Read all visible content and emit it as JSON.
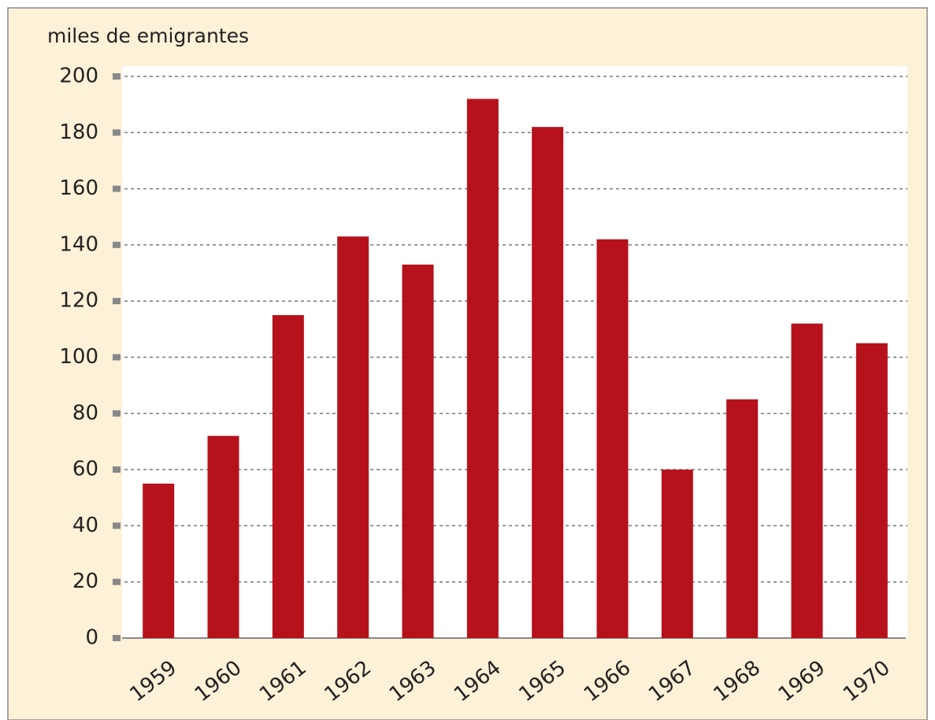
{
  "chart_data": {
    "type": "bar",
    "title": "miles de emigrantes",
    "categories": [
      "1959",
      "1960",
      "1961",
      "1962",
      "1963",
      "1964",
      "1965",
      "1966",
      "1967",
      "1968",
      "1969",
      "1970"
    ],
    "values": [
      55,
      72,
      115,
      143,
      133,
      192,
      182,
      142,
      60,
      85,
      112,
      105
    ],
    "color": "#b5121b",
    "ylim": [
      0,
      200
    ],
    "yticks": [
      0,
      20,
      40,
      60,
      80,
      100,
      120,
      140,
      160,
      180,
      200
    ],
    "grid": true
  }
}
